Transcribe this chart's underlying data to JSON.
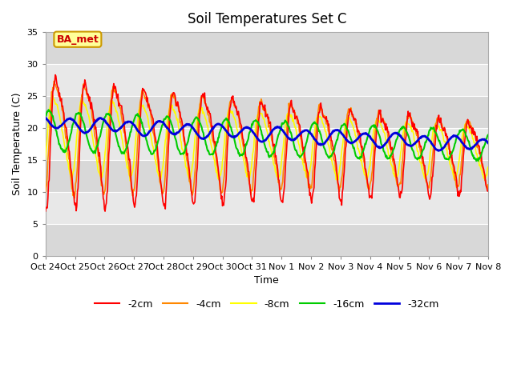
{
  "title": "Soil Temperatures Set C",
  "xlabel": "Time",
  "ylabel": "Soil Temperature (C)",
  "ylim": [
    0,
    35
  ],
  "yticks": [
    0,
    5,
    10,
    15,
    20,
    25,
    30,
    35
  ],
  "xtick_labels": [
    "Oct 24",
    "Oct 25",
    "Oct 26",
    "Oct 27",
    "Oct 28",
    "Oct 29",
    "Oct 30",
    "Oct 31",
    "Nov 1",
    "Nov 2",
    "Nov 3",
    "Nov 4",
    "Nov 5",
    "Nov 6",
    "Nov 7",
    "Nov 8"
  ],
  "legend_labels": [
    "-2cm",
    "-4cm",
    "-8cm",
    "-16cm",
    "-32cm"
  ],
  "legend_colors": [
    "#ff0000",
    "#ff8800",
    "#ffff00",
    "#00cc00",
    "#0000dd"
  ],
  "line_widths": [
    1.2,
    1.2,
    1.2,
    1.5,
    2.0
  ],
  "annotation_text": "BA_met",
  "annotation_bg": "#ffff99",
  "annotation_border": "#cc9900",
  "fig_bg": "#ffffff",
  "plot_bg": "#e8e8e8",
  "grid_color": "#ffffff",
  "title_fontsize": 12,
  "label_fontsize": 9,
  "tick_fontsize": 8
}
